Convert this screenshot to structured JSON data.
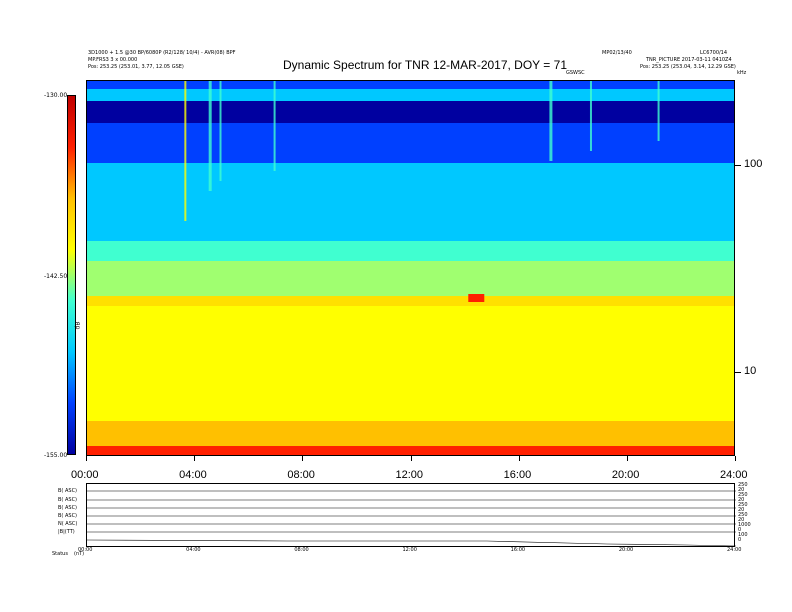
{
  "header": {
    "left_line1": "3D1000 + 1.5 @30 BP/6080P (R2/128/ 10/4) - AVR(08) BPF",
    "left_line2": "MP.FRS3 3 x 00.000",
    "left_line3": "Pos: 253.25 (253.01, 3.77, 12.05 GSE)",
    "right_line1": "MP02/13/40",
    "right_line2": "LC6700/14",
    "right_line3": "TNR_PICTURE 2017-03-11 0410Z4",
    "right_line4": "Pos: 253.25 (253.04, 3.14, 12.29 GSE)",
    "center_small": "GSWSC",
    "corner_small": "kHz"
  },
  "chart_data": {
    "type": "heatmap",
    "title": "Dynamic Spectrum for TNR 12-MAR-2017, DOY = 71",
    "x_ticks": [
      "00:00",
      "04:00",
      "08:00",
      "12:00",
      "16:00",
      "20:00",
      "24:00"
    ],
    "x_range_hours": [
      0,
      24
    ],
    "y_scale": "log",
    "y_ticks": [
      "100",
      "10"
    ],
    "y_range_khz": [
      4,
      245
    ],
    "colorbar_ticks": [
      "-130.00",
      "-142.50",
      "-155.00"
    ],
    "colorbar_label": "dB",
    "colorbar_range": [
      -155,
      -130
    ],
    "colors": [
      "#0000a0",
      "#0040ff",
      "#00c8ff",
      "#40ffd0",
      "#ffff00",
      "#ffc000",
      "#ff2000",
      "#c00000"
    ],
    "features": {
      "quiet_bands_top": true,
      "plasma_line_khz": [
        32,
        36
      ]
    }
  },
  "lower_panel": {
    "row_labels": [
      "B( ASC)",
      "B( ASC)",
      "B( ASC)",
      "B( ASC)",
      "N( ASC)",
      "|B|(TT)"
    ],
    "right_labels": [
      "250",
      "20",
      "250",
      "20",
      "250",
      "20",
      "250",
      "20",
      "1000",
      "0",
      "100",
      "0"
    ],
    "x_ticks": [
      "00:00",
      "04:00",
      "08:00",
      "12:00",
      "16:00",
      "20:00",
      "24:00"
    ],
    "footer_left": "Status",
    "footer_left2": "(nT)"
  }
}
